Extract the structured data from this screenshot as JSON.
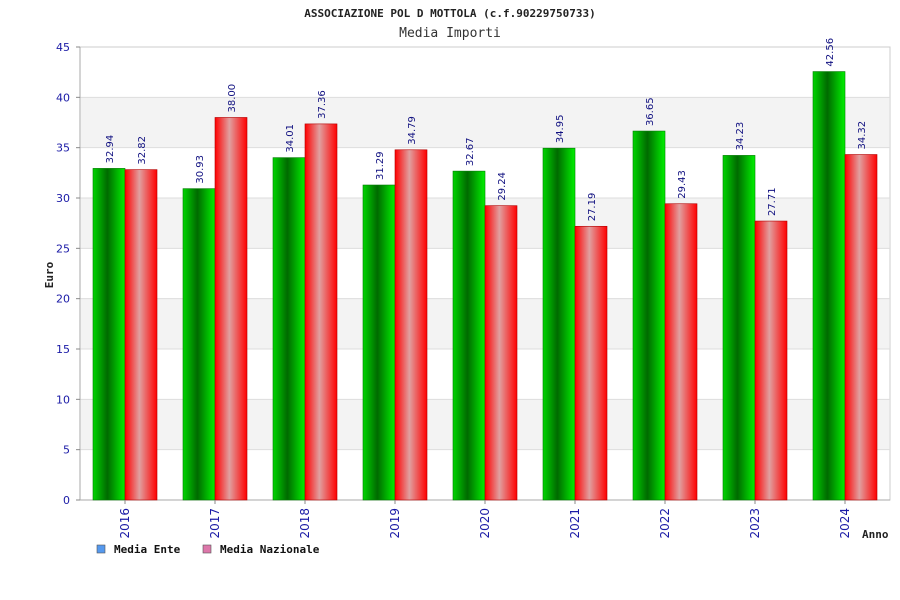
{
  "chart_data": {
    "type": "bar",
    "title": "ASSOCIAZIONE POL D MOTTOLA (c.f.90229750733)",
    "subtitle": "Media Importi",
    "xlabel": "Anno",
    "ylabel": "Euro",
    "ylim": [
      0,
      45
    ],
    "yticks": [
      0,
      5,
      10,
      15,
      20,
      25,
      30,
      35,
      40,
      45
    ],
    "grid": true,
    "legend_position": "bottom-left",
    "categories": [
      "2016",
      "2017",
      "2018",
      "2019",
      "2020",
      "2021",
      "2022",
      "2023",
      "2024"
    ],
    "series": [
      {
        "name": "Media Ente",
        "values": [
          32.94,
          30.93,
          34.01,
          31.29,
          32.67,
          34.95,
          36.65,
          34.23,
          42.56
        ],
        "labels": [
          "32.94",
          "30.93",
          "34.01",
          "31.29",
          "32.67",
          "34.95",
          "36.65",
          "34.23",
          "42.56"
        ],
        "color": "#00c000",
        "legend_color": "#5599ee"
      },
      {
        "name": "Media Nazionale",
        "values": [
          32.82,
          38.0,
          37.36,
          34.79,
          29.24,
          27.19,
          29.43,
          27.71,
          34.32
        ],
        "labels": [
          "32.82",
          "38.00",
          "37.36",
          "34.79",
          "29.24",
          "27.19",
          "29.43",
          "27.71",
          "34.32"
        ],
        "color": "#ff1a1a",
        "legend_color": "#dd77aa"
      }
    ]
  }
}
